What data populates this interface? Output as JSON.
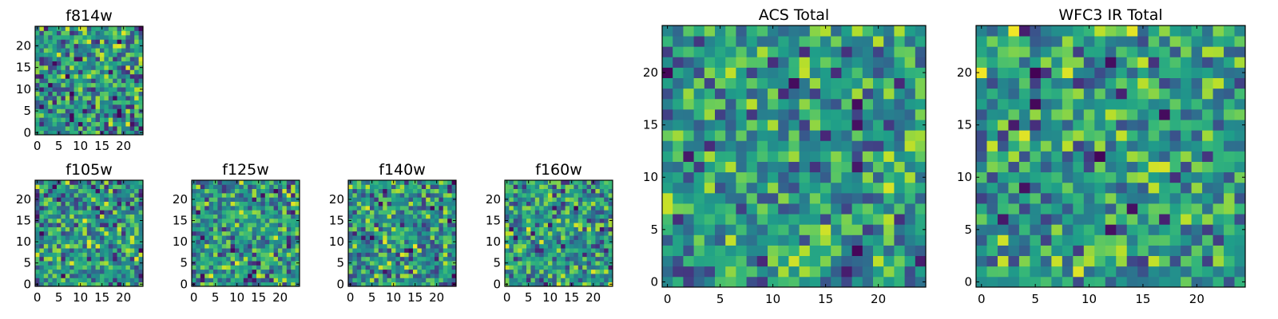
{
  "chart_data": [
    {
      "id": "f814w",
      "type": "heatmap",
      "title": "f814w",
      "grid_size": 25,
      "xticks": [
        "0",
        "5",
        "10",
        "15",
        "20"
      ],
      "yticks": [
        "0",
        "5",
        "10",
        "15",
        "20"
      ],
      "xlim": [
        0,
        24
      ],
      "ylim": [
        0,
        24
      ],
      "colormap": "viridis",
      "noise_seed": 11,
      "dark_prob": 0.1
    },
    {
      "id": "f105w",
      "type": "heatmap",
      "title": "f105w",
      "grid_size": 25,
      "xticks": [
        "0",
        "5",
        "10",
        "15",
        "20"
      ],
      "yticks": [
        "0",
        "5",
        "10",
        "15",
        "20"
      ],
      "xlim": [
        0,
        24
      ],
      "ylim": [
        0,
        24
      ],
      "colormap": "viridis",
      "noise_seed": 23,
      "dark_prob": 0.05
    },
    {
      "id": "f125w",
      "type": "heatmap",
      "title": "f125w",
      "grid_size": 25,
      "xticks": [
        "0",
        "5",
        "10",
        "15",
        "20"
      ],
      "yticks": [
        "0",
        "5",
        "10",
        "15",
        "20"
      ],
      "xlim": [
        0,
        24
      ],
      "ylim": [
        0,
        24
      ],
      "colormap": "viridis",
      "noise_seed": 37,
      "dark_prob": 0.05
    },
    {
      "id": "f140w",
      "type": "heatmap",
      "title": "f140w",
      "grid_size": 25,
      "xticks": [
        "0",
        "5",
        "10",
        "15",
        "20"
      ],
      "yticks": [
        "0",
        "5",
        "10",
        "15",
        "20"
      ],
      "xlim": [
        0,
        24
      ],
      "ylim": [
        0,
        24
      ],
      "colormap": "viridis",
      "noise_seed": 51,
      "dark_prob": 0.07
    },
    {
      "id": "f160w",
      "type": "heatmap",
      "title": "f160w",
      "grid_size": 25,
      "xticks": [
        "0",
        "5",
        "10",
        "15",
        "20"
      ],
      "yticks": [
        "0",
        "5",
        "10",
        "15",
        "20"
      ],
      "xlim": [
        0,
        24
      ],
      "ylim": [
        0,
        24
      ],
      "colormap": "viridis",
      "noise_seed": 67,
      "dark_prob": 0.06
    },
    {
      "id": "acs-total",
      "type": "heatmap",
      "title": "ACS Total",
      "grid_size": 25,
      "xticks": [
        "0",
        "5",
        "10",
        "15",
        "20"
      ],
      "yticks": [
        "0",
        "5",
        "10",
        "15",
        "20"
      ],
      "xlim": [
        0,
        24
      ],
      "ylim": [
        0,
        24
      ],
      "colormap": "viridis",
      "noise_seed": 79,
      "dark_prob": 0.04
    },
    {
      "id": "wfc3-ir-total",
      "type": "heatmap",
      "title": "WFC3 IR Total",
      "grid_size": 25,
      "xticks": [
        "0",
        "5",
        "10",
        "15",
        "20"
      ],
      "yticks": [
        "0",
        "5",
        "10",
        "15",
        "20"
      ],
      "xlim": [
        0,
        24
      ],
      "ylim": [
        0,
        24
      ],
      "colormap": "viridis",
      "noise_seed": 97,
      "dark_prob": 0.035
    }
  ]
}
